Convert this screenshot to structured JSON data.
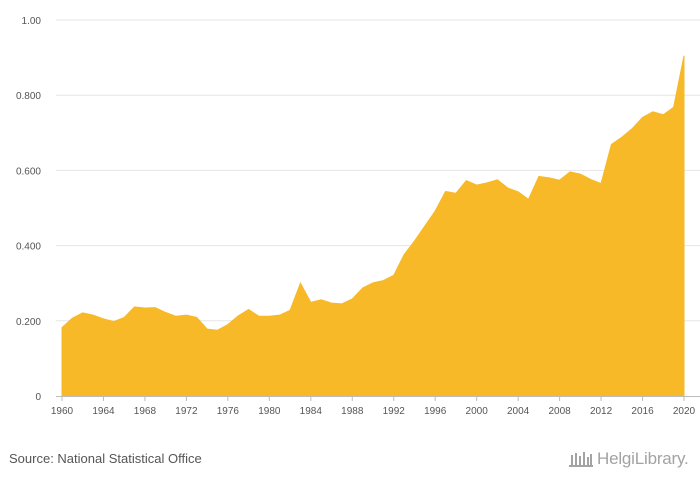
{
  "chart_data": {
    "type": "area",
    "x": [
      1960,
      1961,
      1962,
      1963,
      1964,
      1965,
      1966,
      1967,
      1968,
      1969,
      1970,
      1971,
      1972,
      1973,
      1974,
      1975,
      1976,
      1977,
      1978,
      1979,
      1980,
      1981,
      1982,
      1983,
      1984,
      1985,
      1986,
      1987,
      1988,
      1989,
      1990,
      1991,
      1992,
      1993,
      1994,
      1995,
      1996,
      1997,
      1998,
      1999,
      2000,
      2001,
      2002,
      2003,
      2004,
      2005,
      2006,
      2007,
      2008,
      2009,
      2010,
      2011,
      2012,
      2013,
      2014,
      2015,
      2016,
      2017,
      2018,
      2019,
      2020
    ],
    "values": [
      0.182,
      0.207,
      0.221,
      0.215,
      0.205,
      0.198,
      0.209,
      0.237,
      0.234,
      0.235,
      0.222,
      0.212,
      0.215,
      0.209,
      0.178,
      0.175,
      0.19,
      0.213,
      0.23,
      0.212,
      0.212,
      0.215,
      0.228,
      0.3,
      0.249,
      0.256,
      0.247,
      0.245,
      0.258,
      0.287,
      0.301,
      0.307,
      0.321,
      0.376,
      0.412,
      0.452,
      0.492,
      0.544,
      0.539,
      0.573,
      0.561,
      0.567,
      0.575,
      0.553,
      0.543,
      0.523,
      0.584,
      0.58,
      0.574,
      0.596,
      0.59,
      0.576,
      0.565,
      0.669,
      0.688,
      0.711,
      0.741,
      0.756,
      0.748,
      0.768,
      0.905
    ],
    "xticks": [
      "1960",
      "1964",
      "1968",
      "1972",
      "1976",
      "1980",
      "1984",
      "1988",
      "1992",
      "1996",
      "2000",
      "2004",
      "2008",
      "2012",
      "2016",
      "2020"
    ],
    "yticks": [
      "0",
      "0.200",
      "0.400",
      "0.600",
      "0.800",
      "1.00"
    ],
    "ylim": [
      0,
      1
    ],
    "xlim": [
      1960,
      2020
    ],
    "grid": true,
    "color": "#f7b927",
    "title": "",
    "xlabel": "",
    "ylabel": ""
  },
  "footer": {
    "source": "Source: National Statistical Office",
    "brand": "HelgiLibrary."
  }
}
